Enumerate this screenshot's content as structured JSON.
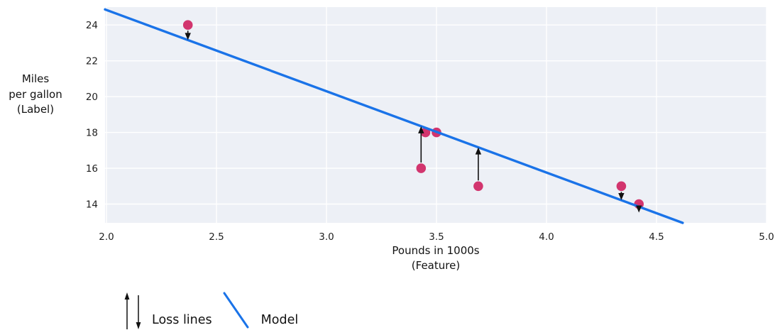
{
  "chart_data": {
    "type": "scatter",
    "title": "",
    "xlabel_lines": [
      "Pounds in 1000s",
      "(Feature)"
    ],
    "ylabel_lines": [
      "Miles",
      "per gallon",
      "(Label)"
    ],
    "x_ticks": [
      "2.0",
      "2.5",
      "3.0",
      "3.5",
      "4.0",
      "4.5",
      "5.0"
    ],
    "x_tick_values": [
      2.0,
      2.5,
      3.0,
      3.5,
      4.0,
      4.5,
      5.0
    ],
    "y_ticks": [
      "14",
      "16",
      "18",
      "20",
      "22",
      "24"
    ],
    "y_tick_values": [
      14,
      16,
      18,
      20,
      22,
      24
    ],
    "xlim": [
      1.9935,
      5.0
    ],
    "ylim": [
      12.95,
      25.0
    ],
    "grid": true,
    "legend_position": "bottom-left",
    "points": [
      {
        "x": 2.37,
        "y": 24,
        "loss_arrow": "down"
      },
      {
        "x": 3.45,
        "y": 18,
        "loss_arrow": "none"
      },
      {
        "x": 3.5,
        "y": 18,
        "loss_arrow": "none"
      },
      {
        "x": 3.43,
        "y": 16,
        "loss_arrow": "up"
      },
      {
        "x": 3.69,
        "y": 15,
        "loss_arrow": "up"
      },
      {
        "x": 4.34,
        "y": 15,
        "loss_arrow": "down"
      },
      {
        "x": 4.42,
        "y": 14,
        "loss_arrow": "down"
      }
    ],
    "model_line": {
      "slope": -4.54,
      "intercept": 33.92
    }
  },
  "legend": {
    "loss_lines_label": "Loss lines",
    "model_label": "Model"
  },
  "colors": {
    "model_line": "#1a73e8",
    "point": "#d2356e",
    "plot_background": "#edf0f6",
    "gridline": "#ffffff",
    "loss_arrow": "#111111",
    "tick_text": "#1f1f1f",
    "page_background": "#ffffff"
  }
}
